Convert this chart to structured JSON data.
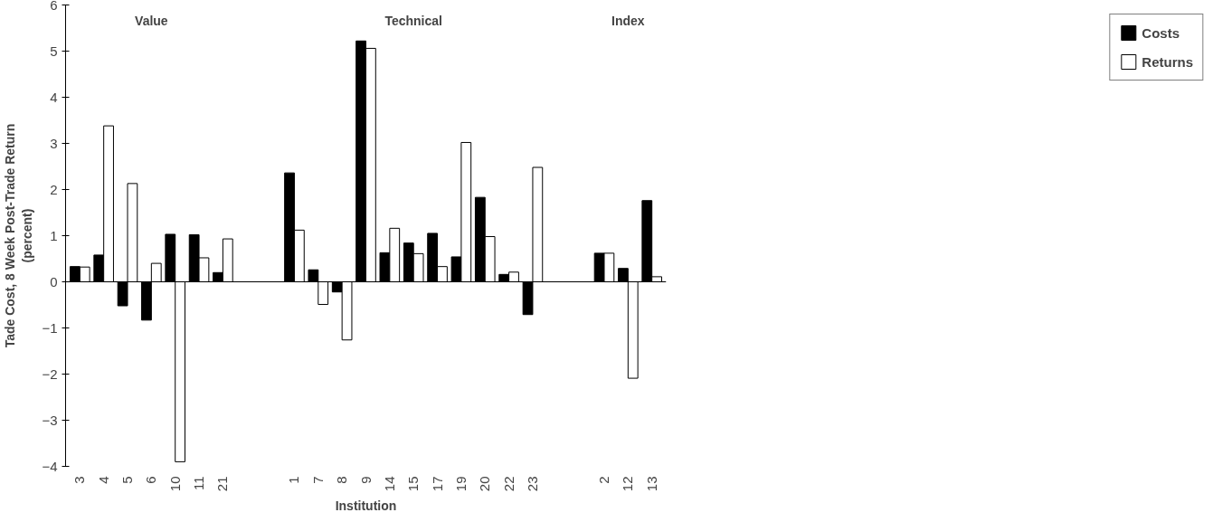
{
  "chart_data": {
    "type": "bar",
    "xlabel": "Institution",
    "ylabel": "Tade Cost, 8 Week Post-Trade Return\n(percent)",
    "annotations": [
      "Value",
      "Technical",
      "Index"
    ],
    "categories": [
      "3",
      "4",
      "5",
      "6",
      "10",
      "11",
      "21",
      null,
      null,
      "1",
      "7",
      "8",
      "9",
      "14",
      "15",
      "17",
      "19",
      "20",
      "22",
      "23",
      null,
      null,
      "2",
      "12",
      "13"
    ],
    "series": [
      {
        "name": "Costs",
        "color": "#000000",
        "values": [
          0.33,
          0.58,
          -0.52,
          -0.83,
          1.03,
          1.02,
          0.2,
          null,
          null,
          2.36,
          0.26,
          -0.22,
          5.22,
          0.63,
          0.84,
          1.05,
          0.54,
          1.83,
          0.16,
          -0.71,
          null,
          null,
          0.62,
          0.29,
          1.76
        ]
      },
      {
        "name": "Returns",
        "color": "#ffffff",
        "values": [
          0.32,
          3.38,
          2.13,
          0.4,
          -3.9,
          0.52,
          0.93,
          null,
          null,
          1.12,
          -0.49,
          -1.26,
          5.06,
          1.16,
          0.61,
          0.33,
          3.02,
          0.98,
          0.21,
          2.48,
          null,
          null,
          0.62,
          -2.09,
          0.11
        ]
      }
    ],
    "ylim": [
      -4,
      6
    ],
    "yticks": [
      -4,
      -3,
      -2,
      -1,
      0,
      1,
      2,
      3,
      4,
      5,
      6
    ],
    "legend": "right"
  }
}
